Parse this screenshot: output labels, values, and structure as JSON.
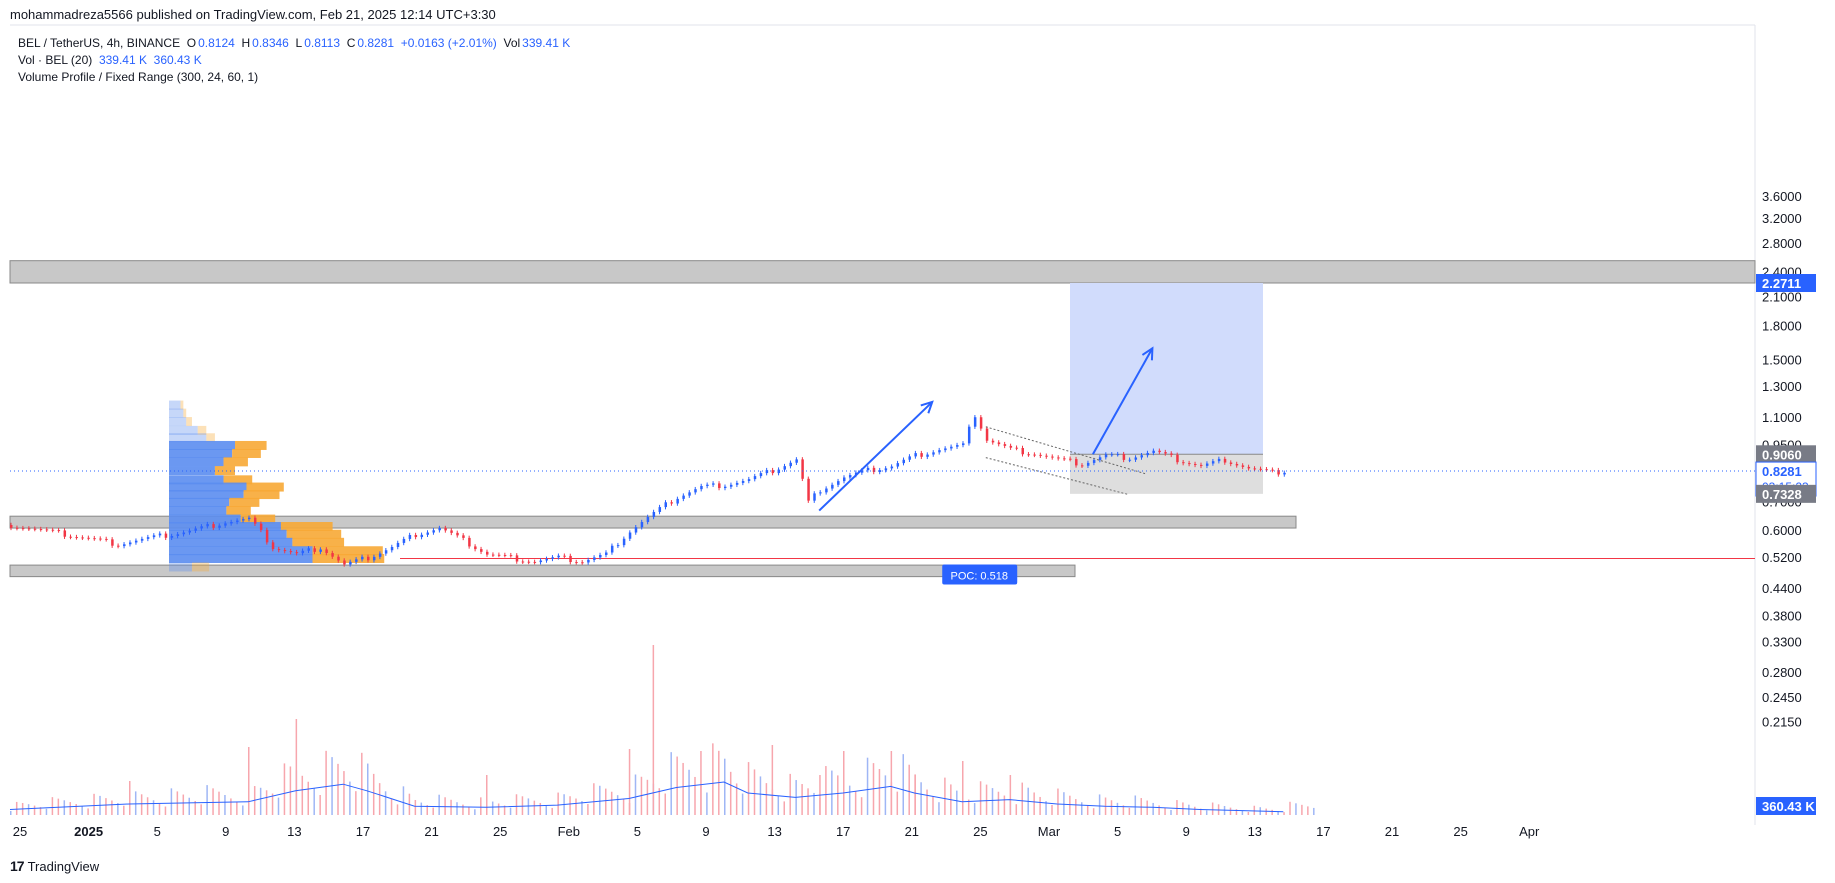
{
  "header": {
    "published": "mohammadreza5566 published on TradingView.com, Feb 21, 2025 12:14 UTC+3:30"
  },
  "legend": {
    "symbol": "BEL / TetherUS, 4h, BINANCE",
    "o_label": "O",
    "o": "0.8124",
    "h_label": "H",
    "h": "0.8346",
    "l_label": "L",
    "l": "0.8113",
    "c_label": "C",
    "c": "0.8281",
    "change": "+0.0163 (+2.01%)",
    "vol_label": "Vol",
    "vol": "339.41 K",
    "vol_ind": "Vol · BEL (20)",
    "vol_ind_v1": "339.41 K",
    "vol_ind_v2": "360.43 K",
    "vp": "Volume Profile / Fixed Range (300, 24, 60, 1)"
  },
  "footer": {
    "brand": "TradingView"
  },
  "colors": {
    "up": "#2962ff",
    "down": "#f23645",
    "zone": "#c8c8c8",
    "target": "#d1dcfc",
    "poc": "#2962ff",
    "vp_up": "#5b8def",
    "vp_down": "#f7a935"
  },
  "chart_data": {
    "type": "candlestick",
    "scale": "log",
    "price_axis_ticks": [
      "3.6000",
      "3.2000",
      "2.8000",
      "2.4000",
      "2.1000",
      "1.8000",
      "1.5000",
      "1.3000",
      "1.1000",
      "0.9500",
      "0.8000",
      "0.7000",
      "0.6000",
      "0.5200",
      "0.4400",
      "0.3800",
      "0.3300",
      "0.2800",
      "0.2450",
      "0.2150"
    ],
    "time_axis_ticks": [
      "25",
      "2025",
      "5",
      "9",
      "13",
      "17",
      "21",
      "25",
      "Feb",
      "5",
      "9",
      "13",
      "17",
      "21",
      "25",
      "Mar",
      "5",
      "9",
      "13",
      "17",
      "21",
      "25",
      "Apr"
    ],
    "price_labels": [
      {
        "value": "2.2711",
        "kind": "zone"
      },
      {
        "value": "0.9060",
        "kind": "entry"
      },
      {
        "value": "0.8281",
        "kind": "last",
        "countdown": "03:15:23"
      },
      {
        "value": "0.7328",
        "kind": "stop"
      },
      {
        "value": "360.43 K",
        "kind": "volume"
      }
    ],
    "poc_label": "POC: 0.518",
    "poc_price": 0.518,
    "zones": [
      {
        "low": 2.2711,
        "high": 2.56
      },
      {
        "low": 0.61,
        "high": 0.65
      },
      {
        "low": 0.47,
        "high": 0.5
      }
    ],
    "long_position": {
      "entry": 0.906,
      "target": 2.2711,
      "stop": 0.7328
    },
    "close_path": [
      [
        0,
        0.62
      ],
      [
        3,
        0.6
      ],
      [
        6,
        0.58
      ],
      [
        9,
        0.56
      ],
      [
        12,
        0.58
      ],
      [
        15,
        0.6
      ],
      [
        18,
        0.63
      ],
      [
        20,
        0.64
      ],
      [
        22,
        0.55
      ],
      [
        24,
        0.53
      ],
      [
        26,
        0.55
      ],
      [
        28,
        0.5
      ],
      [
        30,
        0.52
      ],
      [
        32,
        0.55
      ],
      [
        34,
        0.59
      ],
      [
        36,
        0.61
      ],
      [
        38,
        0.57
      ],
      [
        40,
        0.53
      ],
      [
        42,
        0.52
      ],
      [
        44,
        0.51
      ],
      [
        46,
        0.52
      ],
      [
        48,
        0.51
      ],
      [
        50,
        0.53
      ],
      [
        52,
        0.6
      ],
      [
        54,
        0.66
      ],
      [
        56,
        0.72
      ],
      [
        58,
        0.76
      ],
      [
        60,
        0.77
      ],
      [
        62,
        0.79
      ],
      [
        64,
        0.83
      ],
      [
        66,
        0.88
      ],
      [
        67,
        0.7
      ],
      [
        68,
        0.75
      ],
      [
        70,
        0.8
      ],
      [
        72,
        0.83
      ],
      [
        74,
        0.85
      ],
      [
        76,
        0.9
      ],
      [
        78,
        0.93
      ],
      [
        80,
        0.95
      ],
      [
        81,
        1.12
      ],
      [
        82,
        0.98
      ],
      [
        84,
        0.93
      ],
      [
        86,
        0.91
      ],
      [
        88,
        0.88
      ],
      [
        90,
        0.86
      ],
      [
        92,
        0.9
      ],
      [
        94,
        0.89
      ],
      [
        96,
        0.92
      ],
      [
        98,
        0.88
      ],
      [
        100,
        0.85
      ],
      [
        102,
        0.88
      ],
      [
        104,
        0.84
      ],
      [
        106,
        0.82
      ],
      [
        107,
        0.8281
      ]
    ],
    "volume_path": [
      [
        0,
        0.05
      ],
      [
        10,
        0.1
      ],
      [
        20,
        0.12
      ],
      [
        24,
        0.22
      ],
      [
        28,
        0.28
      ],
      [
        30,
        0.22
      ],
      [
        34,
        0.08
      ],
      [
        40,
        0.07
      ],
      [
        46,
        0.09
      ],
      [
        52,
        0.15
      ],
      [
        56,
        0.25
      ],
      [
        60,
        0.3
      ],
      [
        62,
        0.2
      ],
      [
        66,
        0.16
      ],
      [
        70,
        0.2
      ],
      [
        74,
        0.26
      ],
      [
        76,
        0.2
      ],
      [
        80,
        0.12
      ],
      [
        84,
        0.14
      ],
      [
        88,
        0.1
      ],
      [
        92,
        0.08
      ],
      [
        96,
        0.07
      ],
      [
        100,
        0.05
      ],
      [
        107,
        0.03
      ]
    ],
    "volume_spikes": [
      [
        10,
        0.17
      ],
      [
        20,
        0.34
      ],
      [
        24,
        0.48
      ],
      [
        40,
        0.2
      ],
      [
        52,
        0.33
      ],
      [
        54,
        0.85
      ],
      [
        58,
        0.32
      ],
      [
        64,
        0.35
      ],
      [
        68,
        0.2
      ],
      [
        70,
        0.32
      ],
      [
        74,
        0.32
      ],
      [
        76,
        0.2
      ],
      [
        80,
        0.27
      ],
      [
        84,
        0.2
      ]
    ],
    "volume_profile": [
      {
        "price": 1.18,
        "up": 0.04,
        "down": 0.02
      },
      {
        "price": 1.13,
        "up": 0.05,
        "down": 0.02
      },
      {
        "price": 1.08,
        "up": 0.06,
        "down": 0.04
      },
      {
        "price": 1.03,
        "up": 0.1,
        "down": 0.06
      },
      {
        "price": 0.99,
        "up": 0.13,
        "down": 0.06
      },
      {
        "price": 0.95,
        "up": 0.23,
        "down": 0.22
      },
      {
        "price": 0.91,
        "up": 0.22,
        "down": 0.2
      },
      {
        "price": 0.87,
        "up": 0.19,
        "down": 0.17
      },
      {
        "price": 0.83,
        "up": 0.16,
        "down": 0.14
      },
      {
        "price": 0.79,
        "up": 0.19,
        "down": 0.2
      },
      {
        "price": 0.76,
        "up": 0.27,
        "down": 0.26
      },
      {
        "price": 0.73,
        "up": 0.26,
        "down": 0.25
      },
      {
        "price": 0.7,
        "up": 0.21,
        "down": 0.21
      },
      {
        "price": 0.67,
        "up": 0.2,
        "down": 0.17
      },
      {
        "price": 0.64,
        "up": 0.25,
        "down": 0.24
      },
      {
        "price": 0.615,
        "up": 0.39,
        "down": 0.36
      },
      {
        "price": 0.59,
        "up": 0.41,
        "down": 0.38
      },
      {
        "price": 0.565,
        "up": 0.43,
        "down": 0.36
      },
      {
        "price": 0.54,
        "up": 0.5,
        "down": 0.49
      },
      {
        "price": 0.518,
        "up": 0.5,
        "down": 0.5
      },
      {
        "price": 0.495,
        "up": 0.08,
        "down": 0.12
      }
    ]
  }
}
